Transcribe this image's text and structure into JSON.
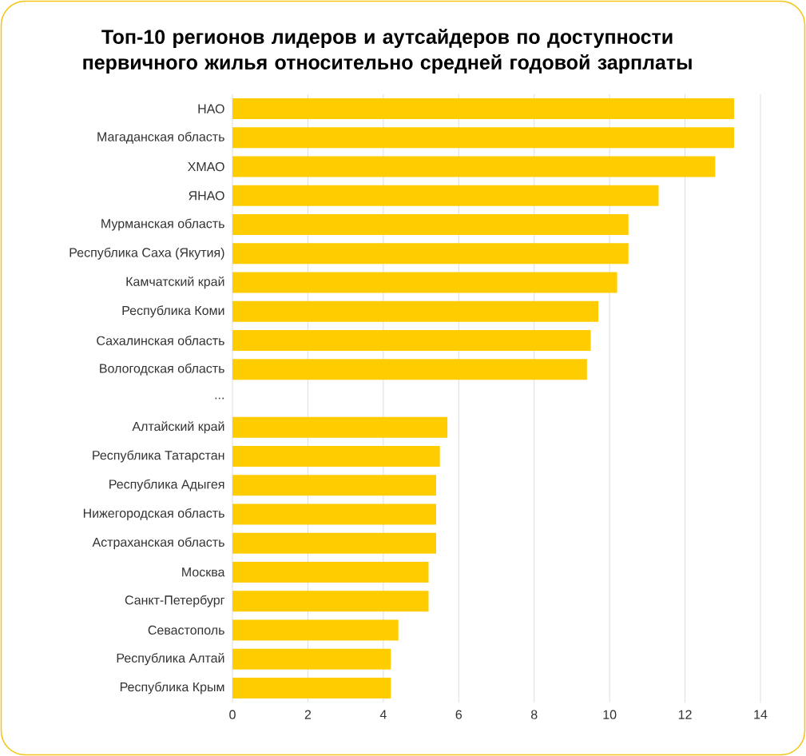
{
  "chart_data": {
    "type": "bar",
    "orientation": "horizontal",
    "title": "Топ-10 регионов лидеров и аутсайдеров по доступности первичного жилья относительно средней годовой зарплаты",
    "categories": [
      "НАО",
      "Магаданская область",
      "ХМАО",
      "ЯНАО",
      "Мурманская область",
      "Республика Саха (Якутия)",
      "Камчатский край",
      "Республика Коми",
      "Сахалинская область",
      "Вологодская область",
      "...",
      "Алтайский край",
      "Республика Татарстан",
      "Республика Адыгея",
      "Нижегородская область",
      "Астраханская область",
      "Москва",
      "Санкт-Петербург",
      "Севастополь",
      "Республика Алтай",
      "Республика Крым"
    ],
    "values": [
      13.3,
      13.3,
      12.8,
      11.3,
      10.5,
      10.5,
      10.2,
      9.7,
      9.5,
      9.4,
      null,
      5.7,
      5.5,
      5.4,
      5.4,
      5.4,
      5.2,
      5.2,
      4.4,
      4.2,
      4.2
    ],
    "color": "#ffcc00",
    "xlim": [
      0,
      14
    ],
    "xticks": [
      0,
      2,
      4,
      6,
      8,
      10,
      12,
      14
    ],
    "grid": "x"
  }
}
